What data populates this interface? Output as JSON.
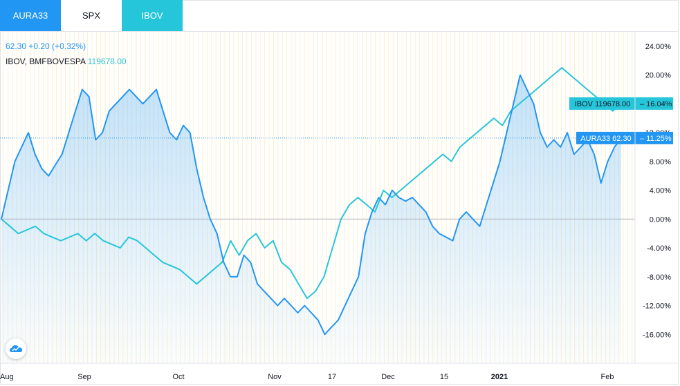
{
  "tabs": [
    {
      "label": "AURA33"
    },
    {
      "label": "SPX"
    },
    {
      "label": "IBOV"
    }
  ],
  "legend": {
    "line1": "62.30 +0.20 (+0.32%)",
    "line2_name": "IBOV, BMFBOVESPA",
    "line2_value": "119678.00"
  },
  "colors": {
    "aura": "#2196f3",
    "ibov": "#26c6da",
    "grid_vertical": "#fdf0cf",
    "zero_line": "#b2b5be",
    "axis_text": "#131722"
  },
  "chart_data": {
    "type": "line",
    "title": "",
    "xlabel": "",
    "ylabel": "",
    "ylim": [
      -20,
      26
    ],
    "y_ticks": [
      "24.00%",
      "20.00%",
      "12.00%",
      "8.00%",
      "4.00%",
      "0.00%",
      "-4.00%",
      "-8.00%",
      "-12.00%",
      "-16.00%"
    ],
    "x_ticks": [
      "Aug",
      "Sep",
      "Oct",
      "Nov",
      "17",
      "Dec",
      "15",
      "2021",
      "Feb"
    ],
    "series": [
      {
        "name": "AURA33",
        "last_label": "AURA33 62.30",
        "last_pct": "11.25%",
        "last_value": 11.25,
        "values": [
          0,
          4,
          8,
          10,
          12,
          9,
          7,
          6,
          7.5,
          9,
          12,
          15,
          18,
          17,
          11,
          12,
          15,
          16,
          17,
          18,
          17,
          16,
          17,
          18,
          15,
          12,
          11,
          13,
          12,
          7,
          3,
          0,
          -2,
          -6,
          -8,
          -8,
          -5,
          -6,
          -9,
          -10,
          -11,
          -12,
          -11,
          -12,
          -13,
          -12,
          -13,
          -14,
          -16,
          -15,
          -14,
          -12,
          -10,
          -8,
          -2,
          1,
          3,
          2,
          4,
          3,
          2.5,
          3,
          2,
          1,
          -1,
          -2,
          -2.5,
          -3,
          0,
          1,
          0,
          -1,
          2,
          5,
          8,
          12,
          16,
          20,
          18,
          16,
          12,
          10,
          11,
          10,
          12,
          9,
          10,
          11,
          9,
          5,
          8,
          10,
          11.25
        ]
      },
      {
        "name": "IBOV",
        "last_label": "IBOV 119678.00",
        "last_pct": "16.04%",
        "last_value": 16.04,
        "values": [
          0,
          -1,
          -2,
          -1.5,
          -1,
          -2,
          -2.5,
          -3,
          -2.5,
          -2,
          -3,
          -2,
          -3,
          -3.5,
          -4,
          -2.5,
          -3,
          -4,
          -5,
          -6,
          -6.5,
          -7,
          -8,
          -9,
          -8,
          -7,
          -6,
          -3,
          -5,
          -3,
          -2,
          -4,
          -3,
          -6,
          -7,
          -9,
          -11,
          -10,
          -8,
          -4,
          0,
          2,
          3,
          2,
          1,
          4,
          3,
          4,
          5,
          6,
          7,
          8,
          9,
          8,
          10,
          11,
          12,
          13,
          14,
          13,
          15,
          16,
          17,
          18,
          19,
          20,
          21,
          20,
          19,
          18,
          17,
          16,
          15,
          16.04
        ]
      }
    ]
  },
  "logo": {
    "icon": "cloud-logo-icon"
  }
}
